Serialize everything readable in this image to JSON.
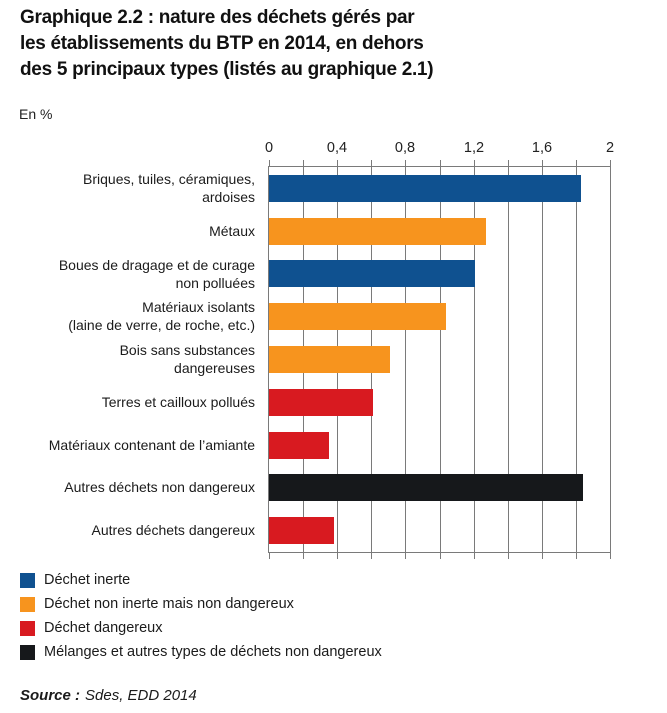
{
  "header": {
    "title_lines": [
      "Graphique 2.2 : nature des déchets gérés par",
      "les établissements du BTP en 2014, en dehors",
      "des 5 principaux types (listés au graphique 2.1)"
    ],
    "unit_label": "En %"
  },
  "chart_data": {
    "type": "bar",
    "orientation": "horizontal",
    "title": "Graphique 2.2 : nature des déchets gérés par les établissements du BTP en 2014, en dehors des 5 principaux types (listés au graphique 2.1)",
    "unit": "En %",
    "x_axis": {
      "position": "top",
      "min": 0,
      "max": 2,
      "major_ticks": [
        "0",
        "0,4",
        "0,8",
        "1,2",
        "1,6",
        "2"
      ],
      "major_tick_values": [
        0,
        0.4,
        0.8,
        1.2,
        1.6,
        2
      ],
      "minor_tick_step": 0.2
    },
    "grid": "vertical",
    "palette": {
      "blue": "#0f5190",
      "orange": "#f7941e",
      "red": "#d81a20",
      "black": "#16181b",
      "axis_gray": "#7a7a7a"
    },
    "bars": [
      {
        "label_lines": [
          "Briques, tuiles, céramiques,",
          "ardoises"
        ],
        "value": 1.83,
        "color_key": "blue"
      },
      {
        "label_lines": [
          "Métaux"
        ],
        "value": 1.27,
        "color_key": "orange"
      },
      {
        "label_lines": [
          "Boues de dragage et de curage",
          "non polluées"
        ],
        "value": 1.21,
        "color_key": "blue"
      },
      {
        "label_lines": [
          "Matériaux isolants",
          "(laine de verre, de roche, etc.)"
        ],
        "value": 1.04,
        "color_key": "orange"
      },
      {
        "label_lines": [
          "Bois sans substances",
          "dangereuses"
        ],
        "value": 0.71,
        "color_key": "orange"
      },
      {
        "label_lines": [
          "Terres et cailloux pollués"
        ],
        "value": 0.61,
        "color_key": "red"
      },
      {
        "label_lines": [
          "Matériaux contenant de l’amiante"
        ],
        "value": 0.35,
        "color_key": "red"
      },
      {
        "label_lines": [
          "Autres déchets non dangereux"
        ],
        "value": 1.84,
        "color_key": "black"
      },
      {
        "label_lines": [
          "Autres déchets dangereux"
        ],
        "value": 0.38,
        "color_key": "red"
      }
    ]
  },
  "legend": {
    "items": [
      {
        "color_key": "blue",
        "label": "Déchet inerte"
      },
      {
        "color_key": "orange",
        "label": "Déchet non inerte mais non dangereux"
      },
      {
        "color_key": "red",
        "label": "Déchet dangereux"
      },
      {
        "color_key": "black",
        "label": "Mélanges et autres types de déchets non dangereux"
      }
    ]
  },
  "source": {
    "prefix": "Source :",
    "text": "Sdes, EDD 2014"
  }
}
